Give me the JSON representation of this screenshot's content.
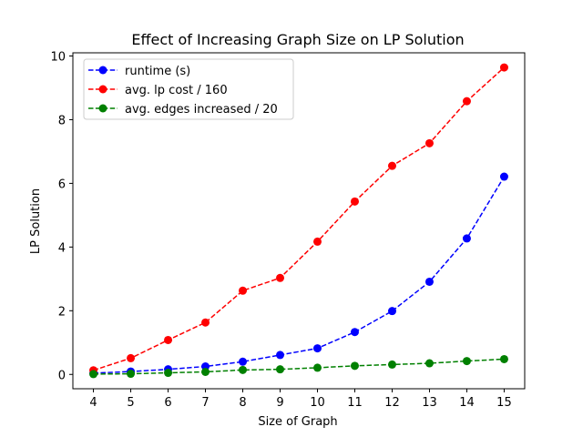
{
  "chart_data": {
    "type": "line",
    "title": "Effect of Increasing Graph Size on LP Solution",
    "xlabel": "Size of Graph",
    "ylabel": "LP Solution",
    "xlim": [
      3.45,
      15.55
    ],
    "ylim": [
      -0.45,
      10.1
    ],
    "x": [
      4,
      5,
      6,
      7,
      8,
      9,
      10,
      11,
      12,
      13,
      14,
      15
    ],
    "xticks": [
      "4",
      "5",
      "6",
      "7",
      "8",
      "9",
      "10",
      "11",
      "12",
      "13",
      "14",
      "15"
    ],
    "yticks": [
      0,
      2,
      4,
      6,
      8,
      10
    ],
    "legend_position": "top-left",
    "grid": false,
    "series": [
      {
        "name": "runtime (s)",
        "color": "#0000ff",
        "values": [
          0.04,
          0.09,
          0.16,
          0.25,
          0.4,
          0.61,
          0.82,
          1.33,
          1.99,
          2.91,
          4.27,
          6.21
        ]
      },
      {
        "name": "avg. lp cost / 160",
        "color": "#ff0000",
        "values": [
          0.13,
          0.51,
          1.08,
          1.63,
          2.63,
          3.03,
          4.17,
          5.43,
          6.55,
          7.26,
          8.58,
          9.64
        ]
      },
      {
        "name": "avg. edges increased / 20",
        "color": "#008000",
        "values": [
          0.01,
          0.02,
          0.05,
          0.08,
          0.14,
          0.16,
          0.21,
          0.27,
          0.31,
          0.35,
          0.42,
          0.48
        ]
      }
    ]
  }
}
